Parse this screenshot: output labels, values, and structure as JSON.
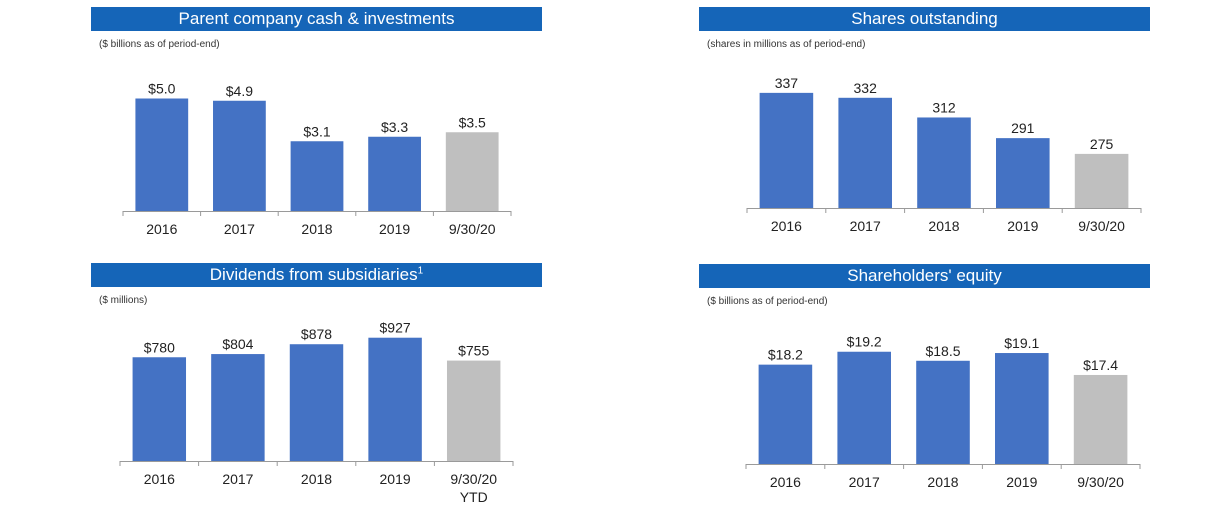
{
  "charts": [
    {
      "title": "Parent company cash & investments",
      "title_sup": "",
      "subtitle": "($ billions as of period-end)",
      "chart_data": {
        "type": "bar",
        "categories": [
          "2016",
          "2017",
          "2018",
          "2019",
          "9/30/20"
        ],
        "category_sub": [
          "",
          "",
          "",
          "",
          ""
        ],
        "values": [
          5.0,
          4.9,
          3.1,
          3.3,
          3.5
        ],
        "labels": [
          "$5.0",
          "$4.9",
          "$3.1",
          "$3.3",
          "$3.5"
        ],
        "ylim": [
          0,
          5.6
        ],
        "colors": [
          "#4472c4",
          "#4472c4",
          "#4472c4",
          "#4472c4",
          "#bfbfbf"
        ]
      }
    },
    {
      "title": "Shares outstanding",
      "title_sup": "",
      "subtitle": "(shares in millions as of period-end)",
      "chart_data": {
        "type": "bar",
        "categories": [
          "2016",
          "2017",
          "2018",
          "2019",
          "9/30/20"
        ],
        "category_sub": [
          "",
          "",
          "",
          "",
          ""
        ],
        "values": [
          337,
          332,
          312,
          291,
          275
        ],
        "labels": [
          "337",
          "332",
          "312",
          "291",
          "275"
        ],
        "ylim": [
          220,
          345
        ],
        "colors": [
          "#4472c4",
          "#4472c4",
          "#4472c4",
          "#4472c4",
          "#bfbfbf"
        ]
      }
    },
    {
      "title": "Dividends from subsidiaries",
      "title_sup": "1",
      "subtitle": "($ millions)",
      "chart_data": {
        "type": "bar",
        "categories": [
          "2016",
          "2017",
          "2018",
          "2019",
          "9/30/20"
        ],
        "category_sub": [
          "",
          "",
          "",
          "",
          "YTD"
        ],
        "values": [
          780,
          804,
          878,
          927,
          755
        ],
        "labels": [
          "$780",
          "$804",
          "$878",
          "$927",
          "$755"
        ],
        "ylim": [
          0,
          1015
        ],
        "colors": [
          "#4472c4",
          "#4472c4",
          "#4472c4",
          "#4472c4",
          "#bfbfbf"
        ]
      }
    },
    {
      "title": "Shareholders' equity",
      "title_sup": "",
      "subtitle": "($ billions as of period-end)",
      "chart_data": {
        "type": "bar",
        "categories": [
          "2016",
          "2017",
          "2018",
          "2019",
          "9/30/20"
        ],
        "category_sub": [
          "",
          "",
          "",
          "",
          ""
        ],
        "values": [
          18.2,
          19.2,
          18.5,
          19.1,
          17.4
        ],
        "labels": [
          "$18.2",
          "$19.2",
          "$18.5",
          "$19.1",
          "$17.4"
        ],
        "ylim": [
          10.5,
          19.8
        ],
        "colors": [
          "#4472c4",
          "#4472c4",
          "#4472c4",
          "#4472c4",
          "#bfbfbf"
        ]
      }
    }
  ]
}
